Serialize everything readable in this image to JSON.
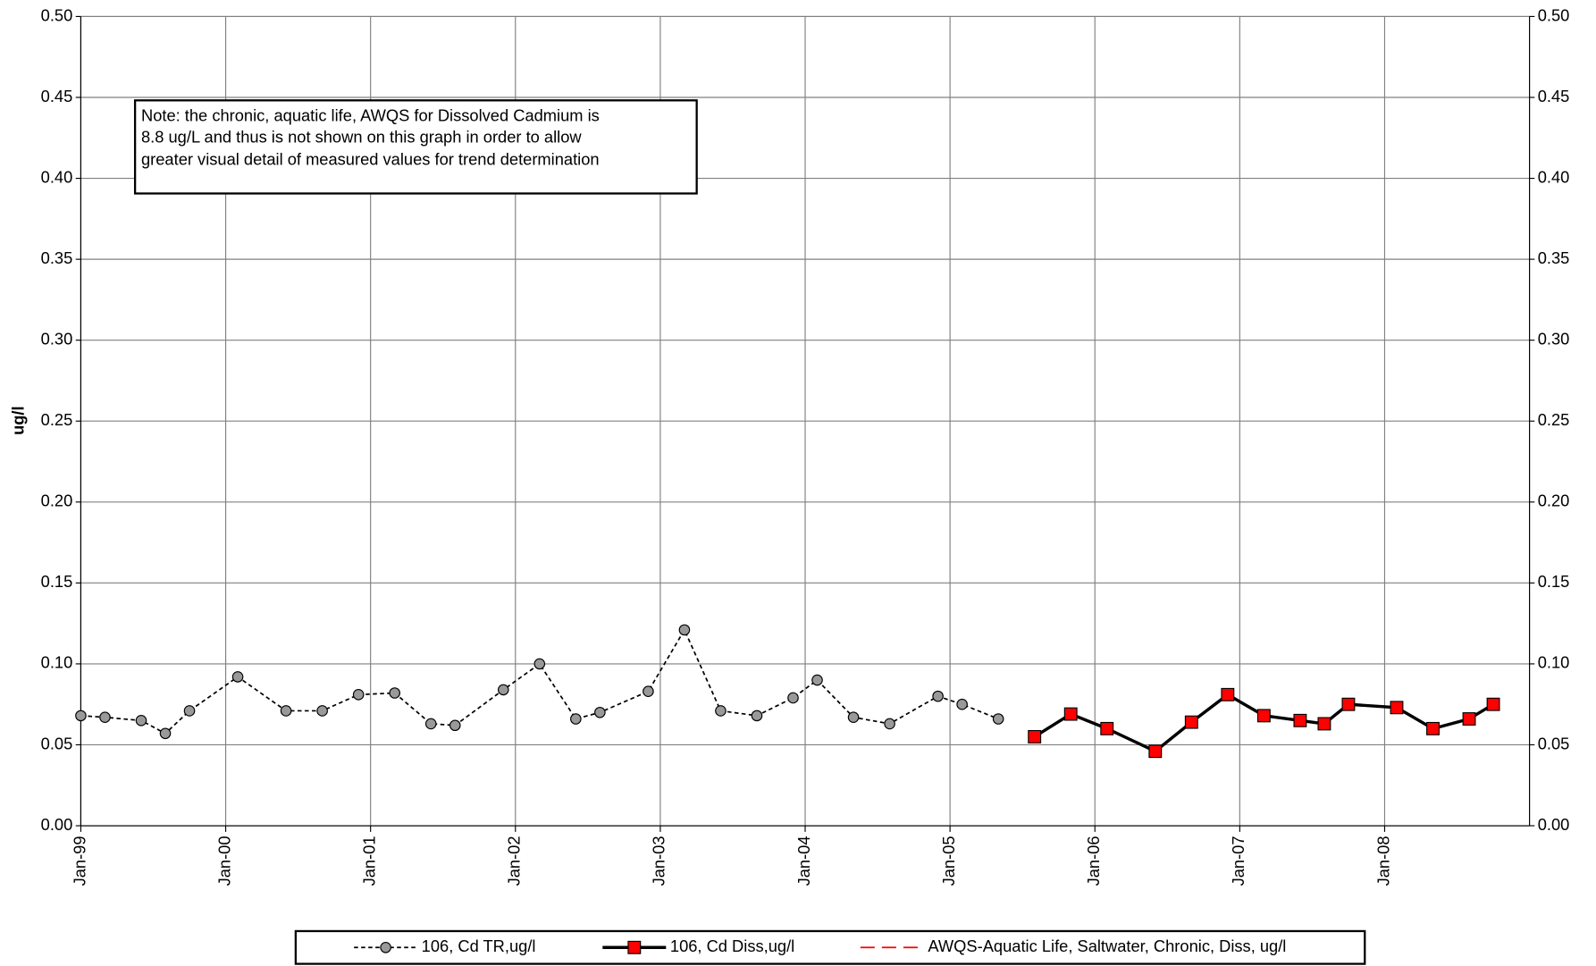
{
  "chart_data": {
    "type": "line",
    "y_label": "ug/l",
    "note_lines": [
      "Note: the chronic, aquatic life, AWQS for Dissolved Cadmium  is",
      "8.8 ug/L and thus is not shown on this graph in order to allow",
      "greater visual detail of measured values for trend determination"
    ],
    "xlim": [
      "1999-01",
      "2009-01"
    ],
    "xticks": [
      {
        "value": "1999-01",
        "label": "Jan-99"
      },
      {
        "value": "2000-01",
        "label": "Jan-00"
      },
      {
        "value": "2001-01",
        "label": "Jan-01"
      },
      {
        "value": "2002-01",
        "label": "Jan-02"
      },
      {
        "value": "2003-01",
        "label": "Jan-03"
      },
      {
        "value": "2004-01",
        "label": "Jan-04"
      },
      {
        "value": "2005-01",
        "label": "Jan-05"
      },
      {
        "value": "2006-01",
        "label": "Jan-06"
      },
      {
        "value": "2007-01",
        "label": "Jan-07"
      },
      {
        "value": "2008-01",
        "label": "Jan-08"
      }
    ],
    "ylim": [
      0,
      0.5
    ],
    "yticks": [
      {
        "value": 0,
        "label": "0.00"
      },
      {
        "value": 0.05,
        "label": "0.05"
      },
      {
        "value": 0.1,
        "label": "0.10"
      },
      {
        "value": 0.15,
        "label": "0.15"
      },
      {
        "value": 0.2,
        "label": "0.20"
      },
      {
        "value": 0.25,
        "label": "0.25"
      },
      {
        "value": 0.3,
        "label": "0.30"
      },
      {
        "value": 0.35,
        "label": "0.35"
      },
      {
        "value": 0.4,
        "label": "0.40"
      },
      {
        "value": 0.45,
        "label": "0.45"
      },
      {
        "value": 0.5,
        "label": "0.50"
      }
    ],
    "mirror_y_axis": true,
    "grid": true,
    "legend": "bottom",
    "series": [
      {
        "name": "106, Cd TR,ug/l",
        "color": "#000000",
        "marker_color": "#999999",
        "marker": "circle",
        "line_style": "dashed",
        "x": [
          "1999-01",
          "1999-03",
          "1999-06",
          "1999-08",
          "1999-10",
          "2000-02",
          "2000-06",
          "2000-09",
          "2000-12",
          "2001-03",
          "2001-06",
          "2001-08",
          "2001-12",
          "2002-03",
          "2002-06",
          "2002-08",
          "2002-12",
          "2003-03",
          "2003-06",
          "2003-09",
          "2003-12",
          "2004-02",
          "2004-05",
          "2004-08",
          "2004-12",
          "2005-02",
          "2005-05"
        ],
        "values": [
          0.068,
          0.067,
          0.065,
          0.057,
          0.071,
          0.092,
          0.071,
          0.071,
          0.081,
          0.082,
          0.063,
          0.062,
          0.084,
          0.1,
          0.066,
          0.07,
          0.083,
          0.121,
          0.071,
          0.068,
          0.079,
          0.09,
          0.067,
          0.063,
          0.08,
          0.075,
          0.066
        ]
      },
      {
        "name": "106, Cd Diss,ug/l",
        "color": "#000000",
        "marker_color": "#ff0000",
        "marker": "square",
        "line_style": "solid",
        "x": [
          "2005-08",
          "2005-11",
          "2006-02",
          "2006-06",
          "2006-09",
          "2006-12",
          "2007-03",
          "2007-06",
          "2007-08",
          "2007-10",
          "2008-02",
          "2008-05",
          "2008-08",
          "2008-10"
        ],
        "values": [
          0.055,
          0.069,
          0.06,
          0.046,
          0.064,
          0.081,
          0.068,
          0.065,
          0.063,
          0.075,
          0.073,
          0.06,
          0.066,
          0.075
        ]
      },
      {
        "name": "AWQS-Aquatic Life, Saltwater, Chronic, Diss, ug/l",
        "color": "#ff0000",
        "marker": "none",
        "line_style": "longdash",
        "x": [],
        "values": []
      }
    ]
  }
}
